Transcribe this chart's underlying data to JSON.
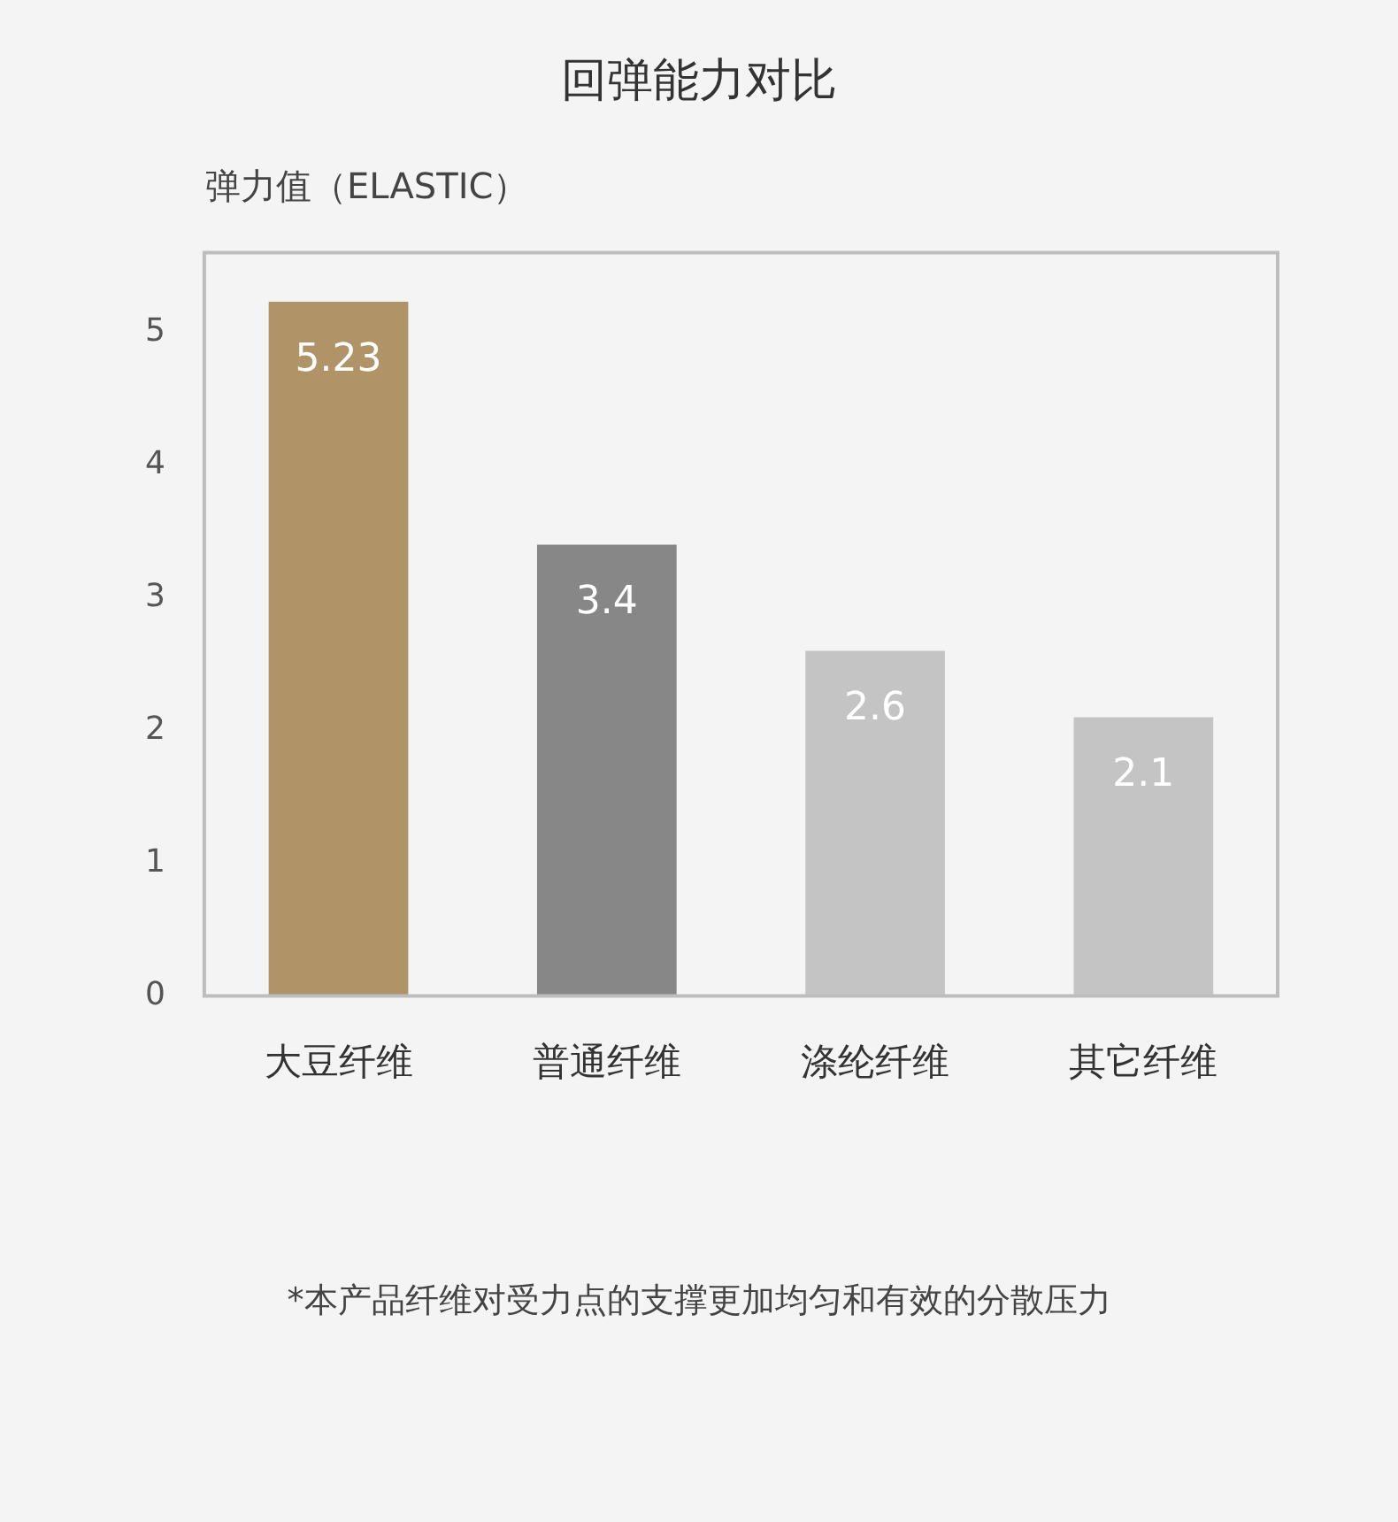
{
  "chart_data": {
    "type": "bar",
    "title": "回弹能力对比",
    "ylabel": "弹力值（ELASTIC）",
    "categories": [
      "大豆纤维",
      "普通纤维",
      "涤纶纤维",
      "其它纤维"
    ],
    "values": [
      5.23,
      3.4,
      2.6,
      2.1
    ],
    "colors": [
      "#b09468",
      "#878787",
      "#c4c4c4",
      "#c4c4c4"
    ],
    "ylim": [
      0,
      5.6
    ],
    "yticks": [
      0,
      1,
      2,
      3,
      4,
      5
    ],
    "grid": false,
    "legend": false,
    "data_labels": true,
    "annotations": [
      "*本产品纤维对受力点的支撑更加均匀和有效的分散压力"
    ]
  }
}
